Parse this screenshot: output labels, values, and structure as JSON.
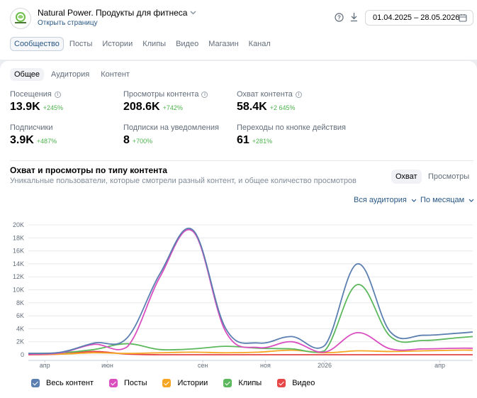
{
  "header": {
    "community_name": "Natural Power. Продукты для фитнеса",
    "open_page_link": "Открыть страницу",
    "date_range": "01.04.2025 – 28.05.2026"
  },
  "tabs": [
    "Сообщество",
    "Посты",
    "Истории",
    "Клипы",
    "Видео",
    "Магазин",
    "Канал"
  ],
  "subtabs": [
    "Общее",
    "Аудитория",
    "Контент"
  ],
  "metrics": [
    {
      "label": "Посещения",
      "value": "13.9K",
      "delta": "+245%",
      "info": true
    },
    {
      "label": "Просмотры контента",
      "value": "208.6K",
      "delta": "+742%",
      "info": true
    },
    {
      "label": "Охват контента",
      "value": "58.4K",
      "delta": "+2 645%",
      "info": true
    },
    {
      "label": "Подписчики",
      "value": "3.9K",
      "delta": "+487%",
      "info": false
    },
    {
      "label": "Подписки на уведомления",
      "value": "8",
      "delta": "+700%",
      "info": false
    },
    {
      "label": "Переходы по кнопке действия",
      "value": "61",
      "delta": "+281%",
      "info": false
    }
  ],
  "chart_section": {
    "title": "Охват и просмотры по типу контента",
    "subtitle": "Уникальные пользователи, которые смотрели разный контент, и общее количество просмотров",
    "toggle_active": "Охват",
    "toggle_inactive": "Просмотры",
    "audience_filter": "Вся аудитория",
    "period_filter": "По месяцам"
  },
  "colors": {
    "accent": "#2a5885",
    "positive": "#4bb34b",
    "all_content": "#5b7fb0",
    "posts": "#d94fc0",
    "stories": "#f5a623",
    "clips": "#5cb85c",
    "video": "#e64646"
  },
  "chart_data": {
    "type": "line",
    "ylim": [
      0,
      20000
    ],
    "y_ticks": [
      "0",
      "2K",
      "4K",
      "6K",
      "8K",
      "10K",
      "12K",
      "14K",
      "16K",
      "18K",
      "20K"
    ],
    "x_tick_labels": [
      "апр",
      "июн",
      "сен",
      "ноя",
      "2026",
      "апр"
    ],
    "x_tick_pos": [
      0.5,
      2.4,
      5.3,
      7.2,
      9.0,
      12.5
    ],
    "x_range": [
      0,
      13.5
    ],
    "series": [
      {
        "name": "Весь контент",
        "color": "#5b7fb0",
        "x": [
          0,
          1,
          2,
          3,
          4,
          5,
          6,
          7,
          8,
          9,
          10,
          11,
          12,
          13,
          13.5
        ],
        "y": [
          200,
          400,
          1800,
          2600,
          12500,
          19200,
          4000,
          1800,
          2800,
          1400,
          14000,
          3500,
          3000,
          3300,
          3500
        ]
      },
      {
        "name": "Посты",
        "color": "#d94fc0",
        "x": [
          0,
          1,
          2,
          3,
          4,
          5,
          6,
          7,
          8,
          9,
          10,
          11,
          12,
          13,
          13.5
        ],
        "y": [
          100,
          300,
          1600,
          1200,
          12000,
          19000,
          3500,
          1100,
          2000,
          400,
          3400,
          900,
          900,
          1000,
          1000
        ]
      },
      {
        "name": "Истории",
        "color": "#f5a623",
        "x": [
          0,
          1,
          2,
          3,
          4,
          5,
          6,
          7,
          8,
          9,
          10,
          11,
          12,
          13,
          13.5
        ],
        "y": [
          100,
          100,
          300,
          200,
          300,
          400,
          300,
          400,
          700,
          300,
          600,
          500,
          600,
          700,
          700
        ]
      },
      {
        "name": "Клипы",
        "color": "#5cb85c",
        "x": [
          0,
          1,
          2,
          3,
          4,
          5,
          6,
          7,
          8,
          9,
          10,
          11,
          12,
          13,
          13.5
        ],
        "y": [
          200,
          300,
          800,
          1700,
          800,
          900,
          1300,
          1000,
          900,
          600,
          10800,
          2800,
          2200,
          2600,
          2800
        ]
      },
      {
        "name": "Видео",
        "color": "#e64646",
        "x": [
          0,
          1,
          2,
          3,
          4,
          5,
          6,
          7,
          8,
          9,
          10,
          11,
          12,
          13,
          13.5
        ],
        "y": [
          0,
          100,
          500,
          100,
          0,
          0,
          0,
          0,
          0,
          0,
          0,
          0,
          0,
          0,
          0
        ]
      }
    ]
  }
}
